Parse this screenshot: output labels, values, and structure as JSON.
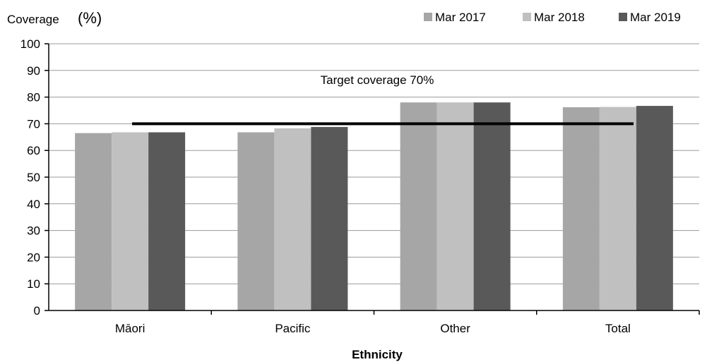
{
  "chart_data": {
    "type": "bar",
    "ylabel": "Coverage",
    "ylabel_unit": "(%)",
    "xlabel": "Ethnicity",
    "ylim": [
      0,
      100
    ],
    "yticks": [
      "0",
      "10",
      "20",
      "30",
      "40",
      "50",
      "60",
      "70",
      "80",
      "90",
      "100"
    ],
    "grid": true,
    "legend_position": "top-right",
    "categories": [
      "Māori",
      "Pacific",
      "Other",
      "Total"
    ],
    "series": [
      {
        "name": "Mar 2017",
        "color": "#a6a6a6",
        "values": [
          66.5,
          66.8,
          78.0,
          76.2
        ]
      },
      {
        "name": "Mar 2018",
        "color": "#c0c0c0",
        "values": [
          66.8,
          68.3,
          78.0,
          76.3
        ]
      },
      {
        "name": "Mar 2019",
        "color": "#595959",
        "values": [
          66.8,
          68.8,
          78.0,
          76.7
        ]
      }
    ],
    "target": {
      "value": 70,
      "label": "Target coverage 70%",
      "color": "#000000"
    }
  }
}
